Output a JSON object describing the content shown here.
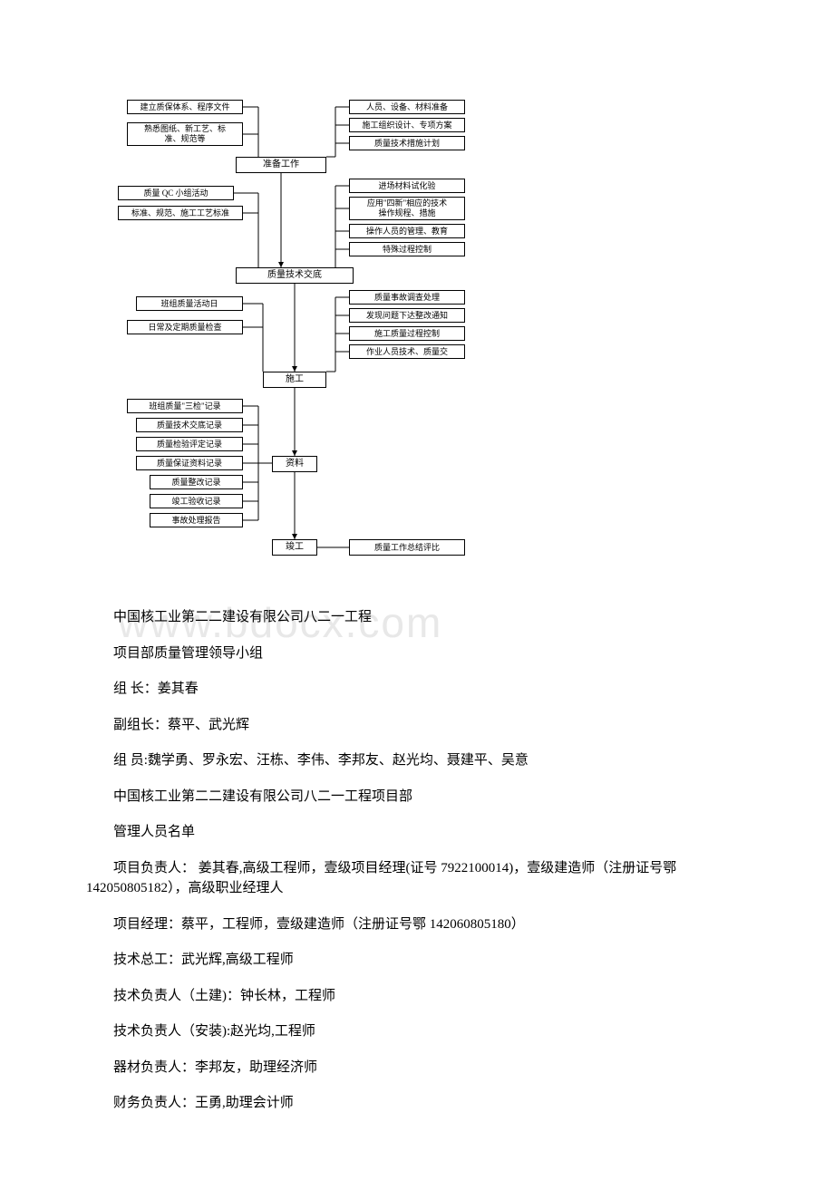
{
  "flowchart": {
    "left_top": [
      "建立质保体系、程序文件",
      "熟悉图纸、新工艺、标\n准、规范等"
    ],
    "right_top": [
      "人员、设备、材料准备",
      "施工组织设计、专项方案",
      "质量技术措施计划"
    ],
    "main1": "准备工作",
    "left_g2": [
      "质量 QC 小组活动",
      "标准、规范、施工工艺标准"
    ],
    "right_g2": [
      "进场材料试化验",
      "应用\"四新\"相应的技术\n操作规程、措施",
      "操作人员的管理、教育",
      "特殊过程控制"
    ],
    "main2": "质量技术交底",
    "left_g3": [
      "班组质量活动日",
      "日常及定期质量检查"
    ],
    "right_g3": [
      "质量事故调查处理",
      "发现问题下达整改通知",
      "施工质量过程控制",
      "作业人员技术、质量交"
    ],
    "main3": "施工",
    "left_g4": [
      "班组质量\"三检\"记录",
      "质量技术交底记录",
      "质量检验评定记录",
      "质量保证资料记录",
      "质量整改记录",
      "竣工验收记录",
      "事故处理报告"
    ],
    "main4": "资料",
    "main5": "竣工",
    "right_bottom": "质量工作总结评比"
  },
  "watermark": "www.bdocx.com",
  "paragraphs": {
    "p1": "中国核工业第二二建设有限公司八二一工程",
    "p2": "项目部质量管理领导小组",
    "p3": "组 长：姜其春",
    "p4": "副组长：蔡平、武光辉",
    "p5": "组 员:魏学勇、罗永宏、汪栋、李伟、李邦友、赵光均、聂建平、吴意",
    "p6": "中国核工业第二二建设有限公司八二一工程项目部",
    "p7": "管理人员名单",
    "p8": "项目负责人： 姜其春,高级工程师，壹级项目经理(证号 7922100014)，壹级建造师（注册证号鄂 142050805182），高级职业经理人",
    "p9": "项目经理：蔡平，工程师，壹级建造师（注册证号鄂 142060805180）",
    "p10": "技术总工：武光辉,高级工程师",
    "p11": "技术负责人（土建)：钟长林，工程师",
    "p12": "技术负责人（安装):赵光均,工程师",
    "p13": "器材负责人：李邦友，助理经济师",
    "p14": "财务负责人：王勇,助理会计师"
  },
  "colors": {
    "text": "#000000",
    "border": "#000000",
    "background": "#ffffff",
    "watermark": "#e8e8e8"
  }
}
